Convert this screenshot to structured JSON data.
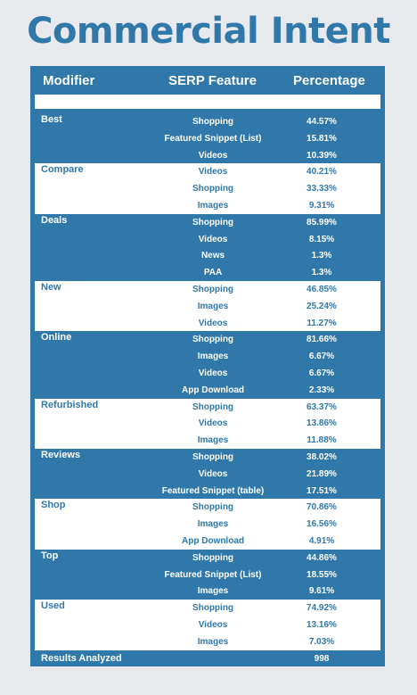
{
  "title": "Commercial Intent",
  "headers": {
    "modifier": "Modifier",
    "serp_feature": "SERP Feature",
    "percentage": "Percentage"
  },
  "groups": [
    {
      "modifier": "Best",
      "style": "dark",
      "rows": [
        {
          "feature": "Shopping",
          "percentage": "44.57%"
        },
        {
          "feature": "Featured Snippet (List)",
          "percentage": "15.81%"
        },
        {
          "feature": "Videos",
          "percentage": "10.39%"
        }
      ]
    },
    {
      "modifier": "Compare",
      "style": "light",
      "rows": [
        {
          "feature": "Videos",
          "percentage": "40.21%"
        },
        {
          "feature": "Shopping",
          "percentage": "33.33%"
        },
        {
          "feature": "Images",
          "percentage": "9.31%"
        }
      ]
    },
    {
      "modifier": "Deals",
      "style": "dark",
      "rows": [
        {
          "feature": "Shopping",
          "percentage": "85.99%"
        },
        {
          "feature": "Videos",
          "percentage": "8.15%"
        },
        {
          "feature": "News",
          "percentage": "1.3%"
        },
        {
          "feature": "PAA",
          "percentage": "1.3%"
        }
      ]
    },
    {
      "modifier": "New",
      "style": "light",
      "rows": [
        {
          "feature": "Shopping",
          "percentage": "46.85%"
        },
        {
          "feature": "Images",
          "percentage": "25.24%"
        },
        {
          "feature": "Videos",
          "percentage": "11.27%"
        }
      ]
    },
    {
      "modifier": "Online",
      "style": "dark",
      "rows": [
        {
          "feature": "Shopping",
          "percentage": "81.66%"
        },
        {
          "feature": "Images",
          "percentage": "6.67%"
        },
        {
          "feature": "Videos",
          "percentage": "6.67%"
        },
        {
          "feature": "App Download",
          "percentage": "2.33%"
        }
      ]
    },
    {
      "modifier": "Refurbished",
      "style": "light",
      "rows": [
        {
          "feature": "Shopping",
          "percentage": "63.37%"
        },
        {
          "feature": "Videos",
          "percentage": "13.86%"
        },
        {
          "feature": "Images",
          "percentage": "11.88%"
        }
      ]
    },
    {
      "modifier": "Reviews",
      "style": "dark",
      "rows": [
        {
          "feature": "Shopping",
          "percentage": "38.02%"
        },
        {
          "feature": "Videos",
          "percentage": "21.89%"
        },
        {
          "feature": "Featured Snippet (table)",
          "percentage": "17.51%"
        }
      ]
    },
    {
      "modifier": "Shop",
      "style": "light",
      "rows": [
        {
          "feature": "Shopping",
          "percentage": "70.86%"
        },
        {
          "feature": "Images",
          "percentage": "16.56%"
        },
        {
          "feature": "App Download",
          "percentage": "4.91%"
        }
      ]
    },
    {
      "modifier": "Top",
      "style": "dark",
      "rows": [
        {
          "feature": "Shopping",
          "percentage": "44.86%"
        },
        {
          "feature": "Featured Snippet (List)",
          "percentage": "18.55%"
        },
        {
          "feature": "Images",
          "percentage": "9.61%"
        }
      ]
    },
    {
      "modifier": "Used",
      "style": "light",
      "rows": [
        {
          "feature": "Shopping",
          "percentage": "74.92%"
        },
        {
          "feature": "Videos",
          "percentage": "13.16%"
        },
        {
          "feature": "Images",
          "percentage": "7.03%"
        }
      ]
    }
  ],
  "footer": {
    "label": "Results Analyzed",
    "value": "998"
  },
  "colors": {
    "brand_blue": "#2f78a9",
    "background": "#e8e9ec",
    "white": "#ffffff"
  }
}
